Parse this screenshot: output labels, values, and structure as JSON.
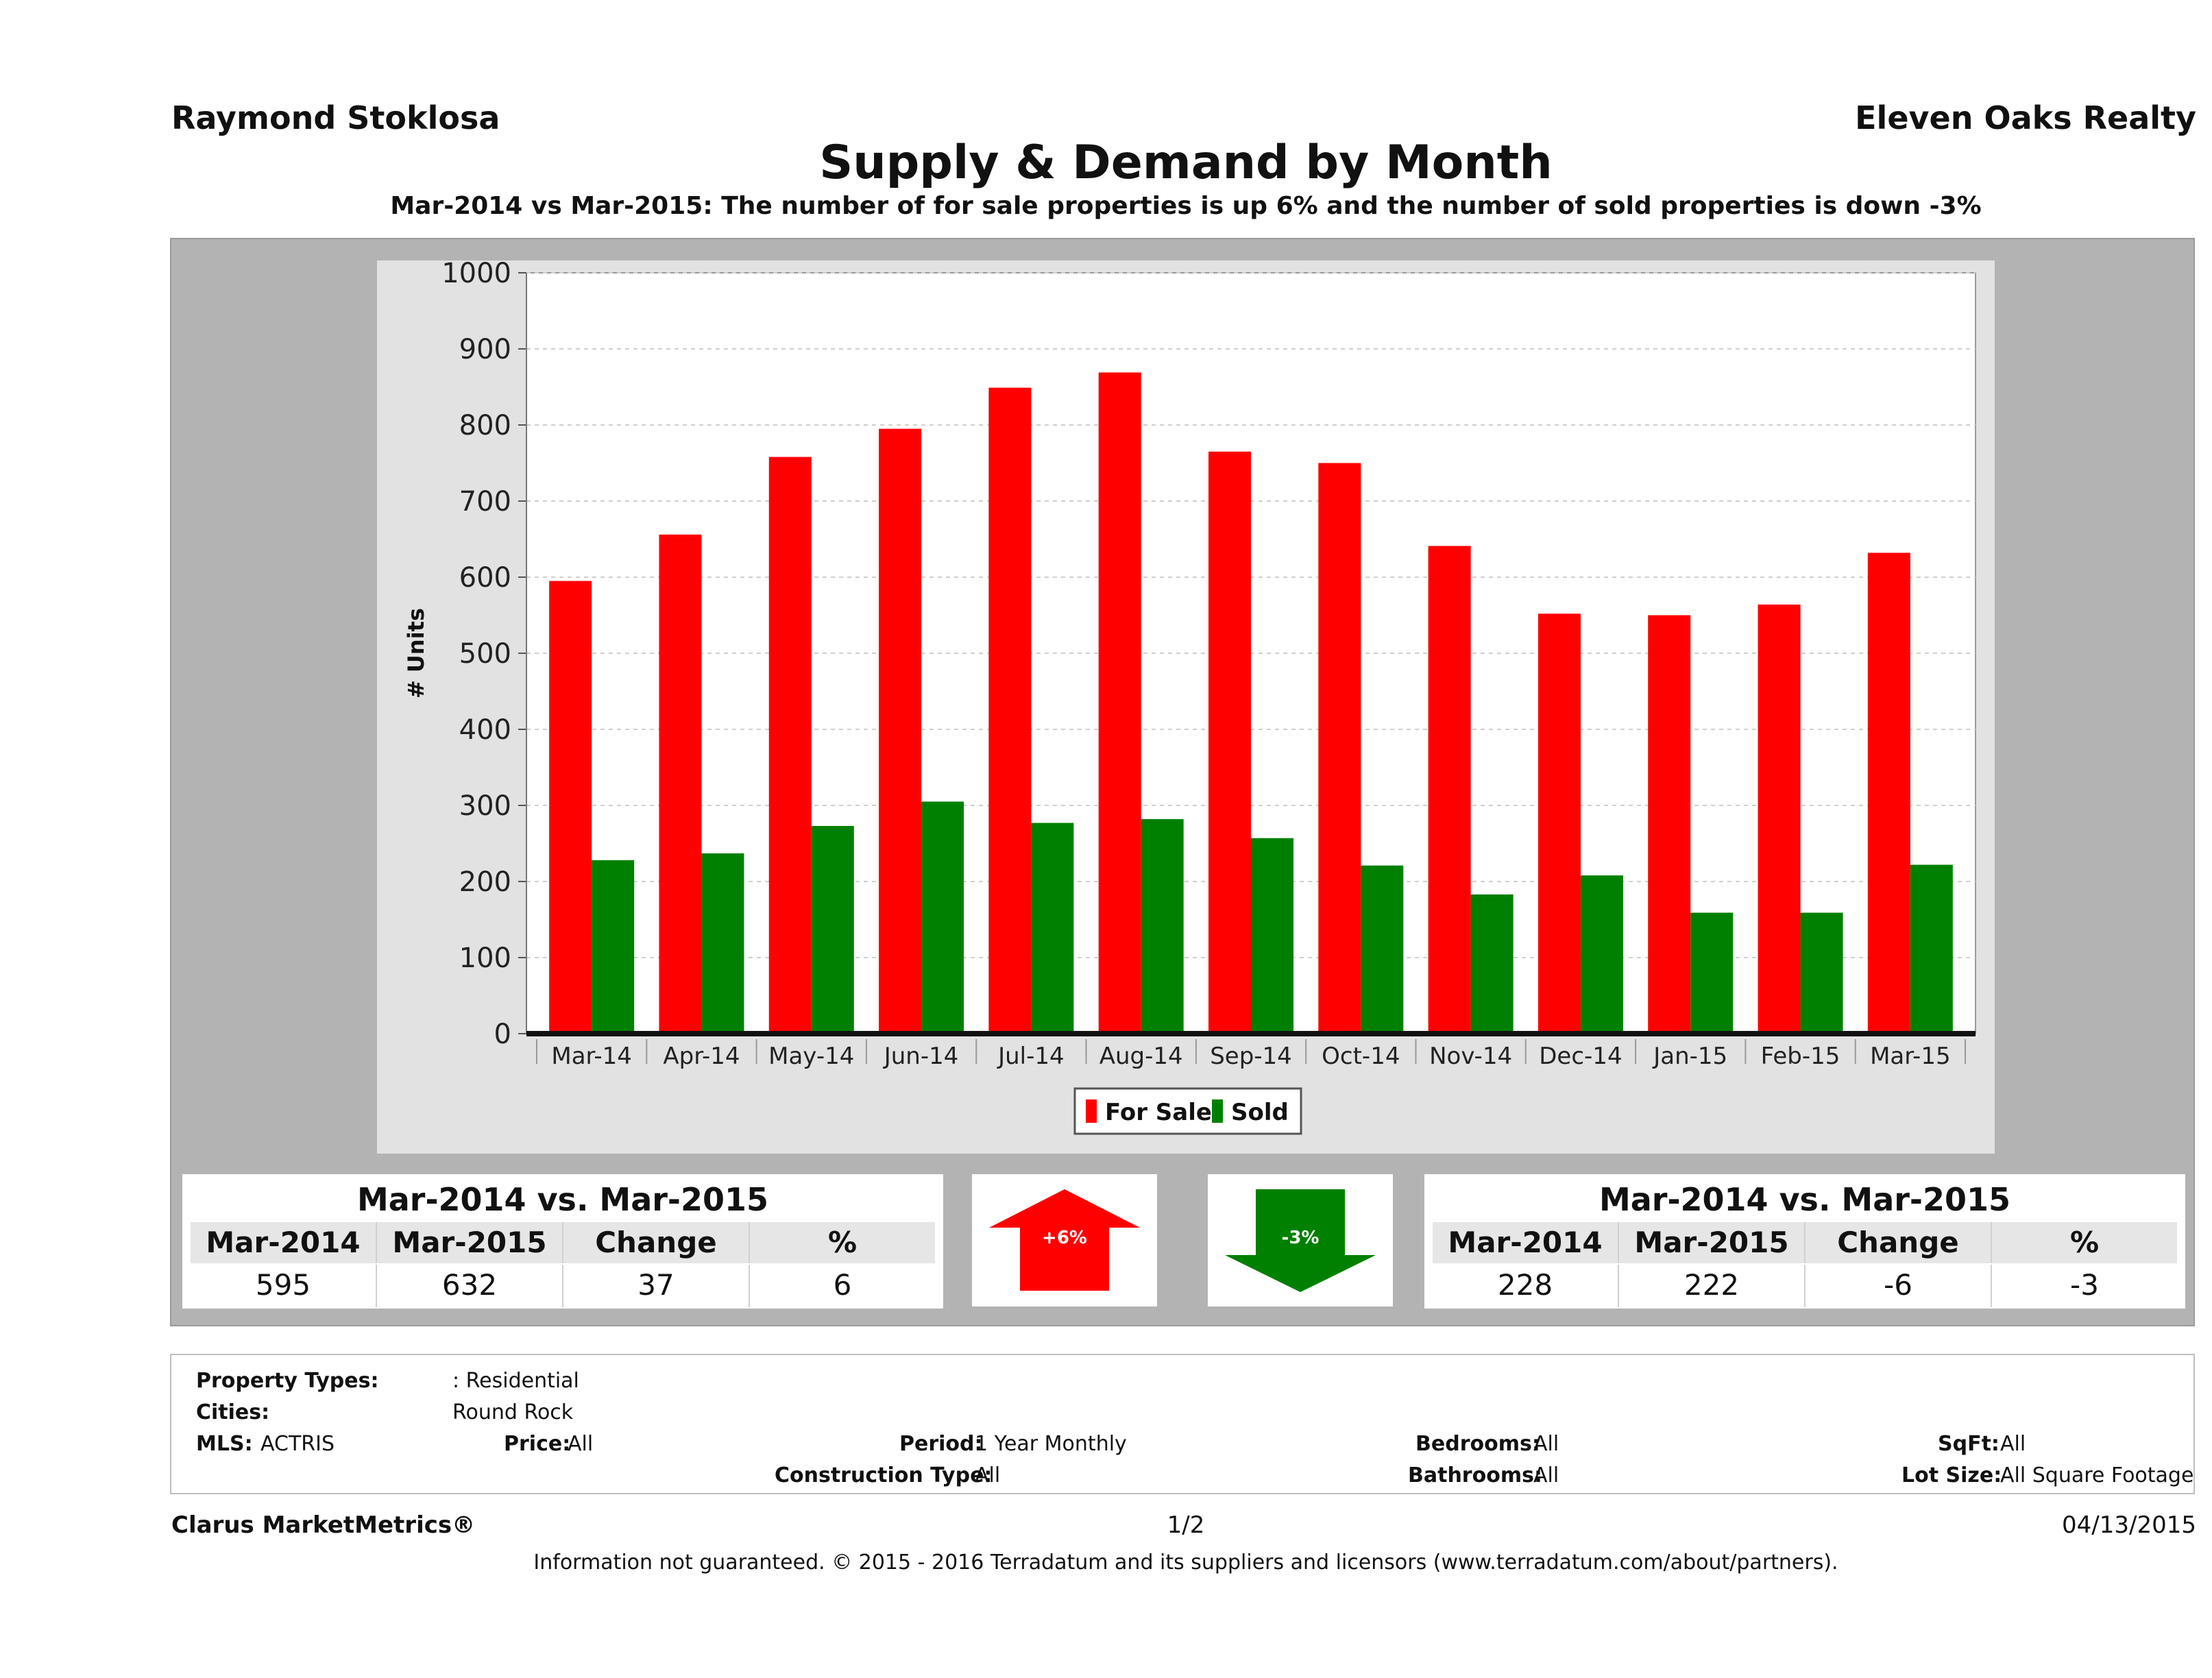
{
  "header": {
    "agent_name": "Raymond Stoklosa",
    "company": "Eleven Oaks Realty",
    "title": "Supply & Demand by Month",
    "subtitle": "Mar-2014 vs Mar-2015: The number of for sale properties is up 6% and the number of sold properties is down -3%"
  },
  "chart_data": {
    "type": "bar",
    "categories": [
      "Mar-14",
      "Apr-14",
      "May-14",
      "Jun-14",
      "Jul-14",
      "Aug-14",
      "Sep-14",
      "Oct-14",
      "Nov-14",
      "Dec-14",
      "Jan-15",
      "Feb-15",
      "Mar-15"
    ],
    "series": [
      {
        "name": "For Sale",
        "color": "#ff0000",
        "values": [
          595,
          656,
          758,
          795,
          849,
          869,
          765,
          750,
          641,
          552,
          550,
          564,
          632
        ]
      },
      {
        "name": "Sold",
        "color": "#008000",
        "values": [
          228,
          237,
          273,
          305,
          277,
          282,
          257,
          221,
          183,
          208,
          159,
          159,
          222
        ]
      }
    ],
    "ylabel": "# Units",
    "ylim": [
      0,
      1000
    ],
    "yticks": [
      0,
      100,
      200,
      300,
      400,
      500,
      600,
      700,
      800,
      900,
      1000
    ],
    "grid": true,
    "legend_position": "bottom-center"
  },
  "for_sale_table": {
    "heading": "Mar-2014 vs. Mar-2015",
    "columns": [
      "Mar-2014",
      "Mar-2015",
      "Change",
      "%"
    ],
    "values": [
      "595",
      "632",
      "37",
      "6"
    ]
  },
  "sold_table": {
    "heading": "Mar-2014 vs. Mar-2015",
    "columns": [
      "Mar-2014",
      "Mar-2015",
      "Change",
      "%"
    ],
    "values": [
      "228",
      "222",
      "-6",
      "-3"
    ]
  },
  "indicators": {
    "up": {
      "label": "+6%",
      "color": "#ff0000",
      "direction": "up"
    },
    "down": {
      "label": "-3%",
      "color": "#008000",
      "direction": "down"
    }
  },
  "filters": {
    "property_types_label": "Property Types:",
    "property_types_value": ": Residential",
    "cities_label": "Cities:",
    "cities_value": "Round Rock",
    "mls_label": "MLS:",
    "mls_value": "ACTRIS",
    "price_label": "Price:",
    "price_value": "All",
    "period_label": "Period:",
    "period_value": "1 Year Monthly",
    "construction_label": "Construction Type:",
    "construction_value": "All",
    "bedrooms_label": "Bedrooms:",
    "bedrooms_value": "All",
    "bathrooms_label": "Bathrooms:",
    "bathrooms_value": "All",
    "sqft_label": "SqFt:",
    "sqft_value": "All",
    "lotsize_label": "Lot Size:",
    "lotsize_value": "All Square Footage"
  },
  "footer": {
    "brand": "Clarus MarketMetrics®",
    "page": "1/2",
    "date": "04/13/2015",
    "disclaimer": "Information not guaranteed. © 2015 - 2016 Terradatum and its suppliers and licensors (www.terradatum.com/about/partners)."
  }
}
